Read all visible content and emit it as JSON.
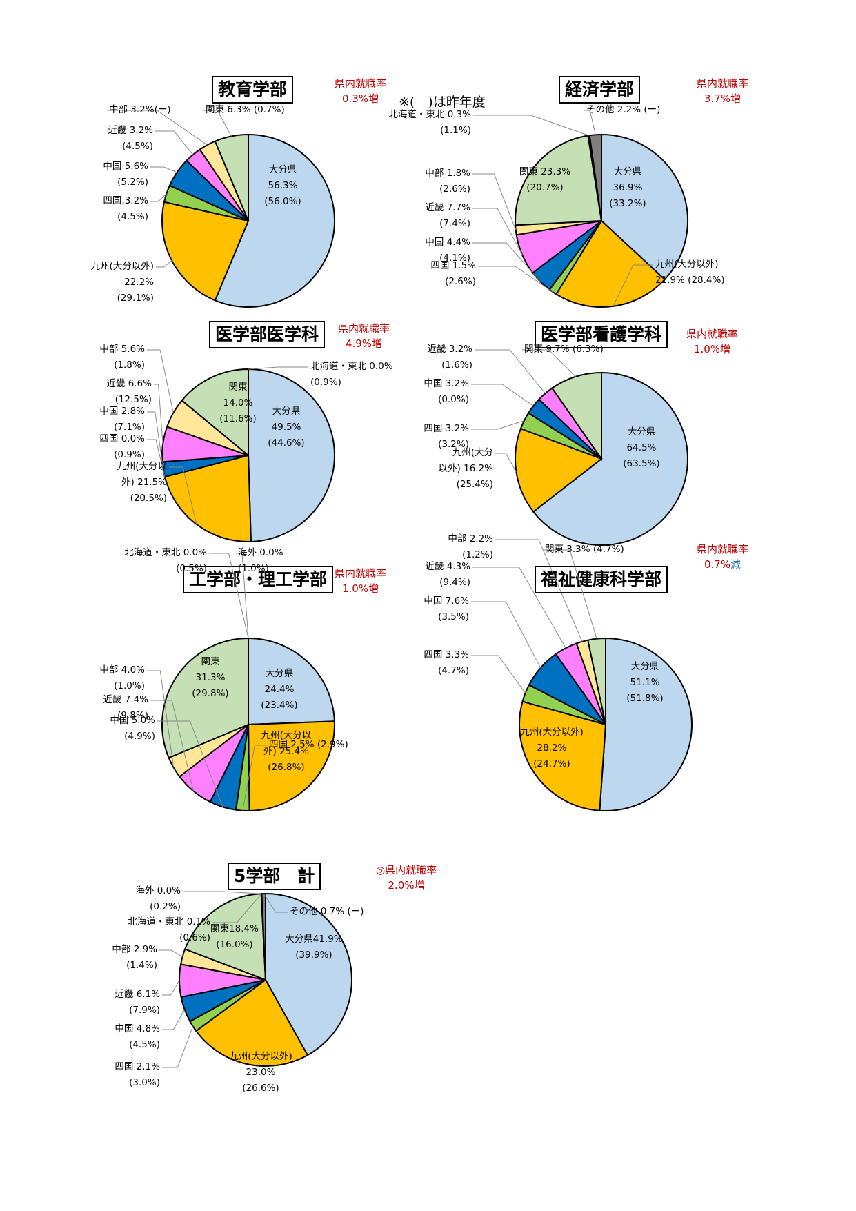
{
  "note": "※(　)は昨年度",
  "colors": {
    "oita": "#bdd7ee",
    "kyushu": "#ffc000",
    "shikoku": "#92d050",
    "chugoku": "#0070c0",
    "kinki": "#ff80ff",
    "chubu": "#ffe699",
    "kanto": "#c5e0b4",
    "hokkaido": "#3a3a3a",
    "kaigai": "#8c8c8c",
    "other": "#7f7f7f",
    "rate_red": "#c00000",
    "rate_blue": "#2e75b6"
  },
  "chart_data": [
    {
      "type": "pie",
      "title": "教育学部",
      "rate_label": "県内就職率",
      "rate_value": "0.3%増",
      "slices": [
        {
          "key": "oita",
          "value": 56.3,
          "label": [
            "大分県",
            "56.3%",
            "(56.0%)"
          ]
        },
        {
          "key": "kyushu",
          "value": 22.2,
          "label": [
            "九州(大分以外)",
            "22.2%",
            "(29.1%)"
          ]
        },
        {
          "key": "shikoku",
          "value": 3.2,
          "label": [
            "四国,3.2%",
            "(4.5%)"
          ]
        },
        {
          "key": "chugoku",
          "value": 5.6,
          "label": [
            "中国 5.6%",
            "(5.2%)"
          ]
        },
        {
          "key": "kinki",
          "value": 3.2,
          "label": [
            "近畿 3.2%",
            "(4.5%)"
          ]
        },
        {
          "key": "chubu",
          "value": 3.2,
          "label": [
            "中部 3.2%(ー)"
          ]
        },
        {
          "key": "kanto",
          "value": 6.3,
          "label": [
            "関東 6.3% (0.7%)"
          ]
        }
      ]
    },
    {
      "type": "pie",
      "title": "経済学部",
      "rate_label": "県内就職率",
      "rate_value": "3.7%増",
      "slices": [
        {
          "key": "oita",
          "value": 36.9,
          "label": [
            "大分県",
            "36.9%",
            "(33.2%)"
          ]
        },
        {
          "key": "kyushu",
          "value": 21.9,
          "label": [
            "九州(大分以外)",
            "21.9% (28.4%)"
          ]
        },
        {
          "key": "shikoku",
          "value": 1.5,
          "label": [
            "四国 1.5%",
            "(2.6%)"
          ]
        },
        {
          "key": "chugoku",
          "value": 4.4,
          "label": [
            "中国 4.4%",
            "(4.1%)"
          ]
        },
        {
          "key": "kinki",
          "value": 7.7,
          "label": [
            "近畿 7.7%",
            "(7.4%)"
          ]
        },
        {
          "key": "chubu",
          "value": 1.8,
          "label": [
            "中部 1.8%",
            "(2.6%)"
          ]
        },
        {
          "key": "kanto",
          "value": 23.3,
          "label": [
            "関東 23.3%",
            "(20.7%)"
          ]
        },
        {
          "key": "hokkaido",
          "value": 0.3,
          "label": [
            "北海道・東北 0.3%",
            "(1.1%)"
          ]
        },
        {
          "key": "other",
          "value": 2.2,
          "label": [
            "その他 2.2% (ー)"
          ]
        }
      ]
    },
    {
      "type": "pie",
      "title": "医学部医学科",
      "rate_label": "県内就職率",
      "rate_value": "4.9%増",
      "slices": [
        {
          "key": "oita",
          "value": 49.5,
          "label": [
            "大分県",
            "49.5%",
            "(44.6%)"
          ]
        },
        {
          "key": "kyushu",
          "value": 21.5,
          "label": [
            "九州(大分以",
            "外) 21.5%",
            "(20.5%)"
          ]
        },
        {
          "key": "shikoku",
          "value": 0.0,
          "label": [
            "四国 0.0%",
            "(0.9%)"
          ]
        },
        {
          "key": "chugoku",
          "value": 2.8,
          "label": [
            "中国 2.8%",
            "(7.1%)"
          ]
        },
        {
          "key": "kinki",
          "value": 6.6,
          "label": [
            "近畿 6.6%",
            "(12.5%)"
          ]
        },
        {
          "key": "chubu",
          "value": 5.6,
          "label": [
            "中部 5.6%",
            "(1.8%)"
          ]
        },
        {
          "key": "kanto",
          "value": 14.0,
          "label": [
            "関東",
            "14.0%",
            "(11.6%)"
          ]
        },
        {
          "key": "hokkaido",
          "value": 0.0,
          "label": [
            "北海道・東北 0.0%",
            "(0.9%)"
          ]
        }
      ]
    },
    {
      "type": "pie",
      "title": "医学部看護学科",
      "rate_label": "県内就職率",
      "rate_value": "1.0%増",
      "slices": [
        {
          "key": "oita",
          "value": 64.5,
          "label": [
            "大分県",
            "64.5%",
            "(63.5%)"
          ]
        },
        {
          "key": "kyushu",
          "value": 16.2,
          "label": [
            "九州(大分",
            "以外) 16.2%",
            "(25.4%)"
          ]
        },
        {
          "key": "shikoku",
          "value": 3.2,
          "label": [
            "四国 3.2%",
            "(3.2%)"
          ]
        },
        {
          "key": "chugoku",
          "value": 3.2,
          "label": [
            "中国 3.2%",
            "(0.0%)"
          ]
        },
        {
          "key": "kinki",
          "value": 3.2,
          "label": [
            "近畿 3.2%",
            "(1.6%)"
          ]
        },
        {
          "key": "kanto",
          "value": 9.7,
          "label": [
            "関東 9.7% (6.3%)"
          ]
        }
      ]
    },
    {
      "type": "pie",
      "title": "工学部・理工学部",
      "rate_label": "県内就職率",
      "rate_value": "1.0%増",
      "slices": [
        {
          "key": "oita",
          "value": 24.4,
          "label": [
            "大分県",
            "24.4%",
            "(23.4%)"
          ]
        },
        {
          "key": "kyushu",
          "value": 25.4,
          "label": [
            "九州(大分以",
            "外) 25.4%",
            "(26.8%)"
          ]
        },
        {
          "key": "shikoku",
          "value": 2.5,
          "label": [
            "四国 2.5% (2.9%)"
          ]
        },
        {
          "key": "chugoku",
          "value": 5.0,
          "label": [
            "中国 5.0%",
            "(4.9%)"
          ]
        },
        {
          "key": "kinki",
          "value": 7.4,
          "label": [
            "近畿 7.4%",
            "(9.8%)"
          ]
        },
        {
          "key": "chubu",
          "value": 4.0,
          "label": [
            "中部 4.0%",
            "(1.0%)"
          ]
        },
        {
          "key": "kanto",
          "value": 31.3,
          "label": [
            "関東",
            "31.3%",
            "(29.8%)"
          ]
        },
        {
          "key": "hokkaido",
          "value": 0.0,
          "label": [
            "北海道・東北 0.0%",
            "(0.5%)"
          ]
        },
        {
          "key": "kaigai",
          "value": 0.0,
          "label": [
            "海外 0.0%",
            "(1.0%)"
          ]
        }
      ]
    },
    {
      "type": "pie",
      "title": "福祉健康科学部",
      "rate_label": "県内就職率",
      "rate_value": "0.7%",
      "rate_suffix": "減",
      "slices": [
        {
          "key": "oita",
          "value": 51.1,
          "label": [
            "大分県",
            "51.1%",
            "(51.8%)"
          ]
        },
        {
          "key": "kyushu",
          "value": 28.2,
          "label": [
            "九州(大分以外)",
            "28.2%",
            "(24.7%)"
          ]
        },
        {
          "key": "shikoku",
          "value": 3.3,
          "label": [
            "四国 3.3%",
            "(4.7%)"
          ]
        },
        {
          "key": "chugoku",
          "value": 7.6,
          "label": [
            "中国 7.6%",
            "(3.5%)"
          ]
        },
        {
          "key": "kinki",
          "value": 4.3,
          "label": [
            "近畿 4.3%",
            "(9.4%)"
          ]
        },
        {
          "key": "chubu",
          "value": 2.2,
          "label": [
            "中部 2.2%",
            "(1.2%)"
          ]
        },
        {
          "key": "kanto",
          "value": 3.3,
          "label": [
            "関東 3.3% (4.7%)"
          ]
        }
      ]
    },
    {
      "type": "pie",
      "title": "5学部　計",
      "rate_label": "◎県内就職率",
      "rate_value": "2.0%増",
      "slices": [
        {
          "key": "oita",
          "value": 41.9,
          "label": [
            "大分県41.9%",
            "(39.9%)"
          ]
        },
        {
          "key": "kyushu",
          "value": 23.0,
          "label": [
            "九州(大分以外)",
            "23.0%",
            "(26.6%)"
          ]
        },
        {
          "key": "shikoku",
          "value": 2.1,
          "label": [
            "四国 2.1%",
            "(3.0%)"
          ]
        },
        {
          "key": "chugoku",
          "value": 4.8,
          "label": [
            "中国 4.8%",
            "(4.5%)"
          ]
        },
        {
          "key": "kinki",
          "value": 6.1,
          "label": [
            "近畿 6.1%",
            "(7.9%)"
          ]
        },
        {
          "key": "chubu",
          "value": 2.9,
          "label": [
            "中部 2.9%",
            "(1.4%)"
          ]
        },
        {
          "key": "kanto",
          "value": 18.4,
          "label": [
            "関東18.4%",
            "(16.0%)"
          ]
        },
        {
          "key": "hokkaido",
          "value": 0.1,
          "label": [
            "北海道・東北 0.1%",
            "(0.6%)"
          ]
        },
        {
          "key": "kaigai",
          "value": 0.0,
          "label": [
            "海外 0.0%",
            "(0.2%)"
          ]
        },
        {
          "key": "other",
          "value": 0.7,
          "label": [
            "その他 0.7% (ー)"
          ]
        }
      ]
    }
  ]
}
